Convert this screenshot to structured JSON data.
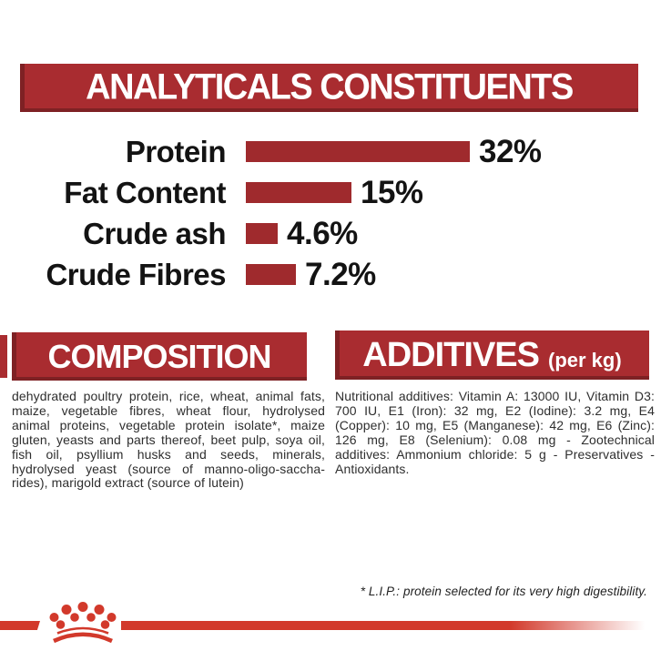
{
  "header": {
    "title": "ANALYTICALS CONSTITUENTS"
  },
  "chart_data": {
    "type": "bar",
    "orientation": "horizontal",
    "title": "ANALYTICALS CONSTITUENTS",
    "categories": [
      "Protein",
      "Fat Content",
      "Crude ash",
      "Crude Fibres"
    ],
    "values": [
      32,
      15,
      4.6,
      7.2
    ],
    "value_labels": [
      "32%",
      "15%",
      "4.6%",
      "7.2%"
    ],
    "unit": "%",
    "xlim": [
      0,
      32
    ],
    "grid": false,
    "legend": false,
    "bar_color": "#9F2A2D"
  },
  "sections": {
    "composition": {
      "title": "COMPOSITION",
      "body": "dehydrated poultry protein, rice, wheat, animal fats, maize, vegetable fibres, wheat flour, hydrolysed animal proteins, vegetable protein isolate*, maize gluten, yeasts and parts thereof, beet pulp, soya oil, fish oil, psyllium husks and seeds, minerals, hydrolysed yeast (source of manno-oligo-saccha-rides), marigold extract (source of lutein)"
    },
    "additives": {
      "title": "ADDITIVES",
      "unit_note": "(per kg)",
      "body": "Nutritional additives: Vitamin A: 13000 IU, Vitamin D3: 700 IU, E1 (Iron): 32 mg, E2 (Iodine): 3.2 mg, E4 (Copper): 10 mg, E5 (Manganese): 42 mg, E6 (Zinc): 126 mg, E8 (Selenium): 0.08 mg - Zootechnical additives: Ammonium chloride: 5 g - Preservatives - Antioxidants."
    }
  },
  "footnote": "* L.I.P.: protein selected for its very high digestibility.",
  "brand": {
    "logo_icon": "royal-canin-crown-icon",
    "stripe_color": "#D2392B"
  },
  "colors": {
    "band_background": "#A92C30",
    "band_edge": "#7E2124",
    "bar": "#9F2A2D",
    "text": "#1D1D1D",
    "brand_red": "#D2392B"
  }
}
